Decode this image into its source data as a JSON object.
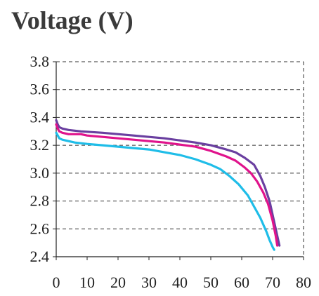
{
  "chart_data": {
    "type": "line",
    "title": "Voltage (V)",
    "xlabel": "",
    "ylabel": "",
    "xlim": [
      0,
      80
    ],
    "ylim": [
      2.4,
      3.8
    ],
    "x_ticks": [
      "0",
      "10",
      "20",
      "30",
      "40",
      "50",
      "60",
      "70",
      "80"
    ],
    "y_ticks": [
      "2.4",
      "2.6",
      "2.8",
      "3.0",
      "3.2",
      "3.4",
      "3.6",
      "3.8"
    ],
    "grid": "horizontal dashed",
    "series": [
      {
        "color": "#6a3fa0",
        "x": [
          0,
          0.5,
          1,
          2,
          4,
          8,
          15,
          25,
          35,
          45,
          50,
          55,
          58,
          61,
          64,
          66,
          67.5,
          69,
          70.5,
          71.5,
          72.2
        ],
        "y": [
          3.38,
          3.35,
          3.33,
          3.32,
          3.31,
          3.3,
          3.29,
          3.27,
          3.25,
          3.22,
          3.2,
          3.17,
          3.15,
          3.11,
          3.06,
          2.98,
          2.9,
          2.8,
          2.65,
          2.55,
          2.48
        ]
      },
      {
        "color": "#e0138c",
        "x": [
          0,
          0.5,
          1,
          2,
          4,
          6,
          8,
          10,
          15,
          25,
          35,
          45,
          50,
          55,
          58,
          61,
          63,
          65,
          67,
          68.5,
          70,
          71,
          71.5
        ],
        "y": [
          3.35,
          3.32,
          3.3,
          3.29,
          3.28,
          3.28,
          3.28,
          3.27,
          3.26,
          3.24,
          3.22,
          3.19,
          3.16,
          3.12,
          3.09,
          3.04,
          3.0,
          2.94,
          2.86,
          2.78,
          2.66,
          2.55,
          2.48
        ]
      },
      {
        "color": "#1fbde8",
        "x": [
          0,
          0.5,
          1,
          2,
          4,
          6,
          10,
          15,
          20,
          25,
          30,
          35,
          40,
          45,
          50,
          53,
          56,
          59,
          62,
          64,
          66,
          68,
          69,
          70,
          70.5
        ],
        "y": [
          3.29,
          3.27,
          3.25,
          3.24,
          3.23,
          3.22,
          3.21,
          3.2,
          3.19,
          3.18,
          3.17,
          3.15,
          3.13,
          3.1,
          3.06,
          3.03,
          2.98,
          2.92,
          2.84,
          2.76,
          2.68,
          2.58,
          2.52,
          2.47,
          2.45
        ]
      }
    ]
  }
}
